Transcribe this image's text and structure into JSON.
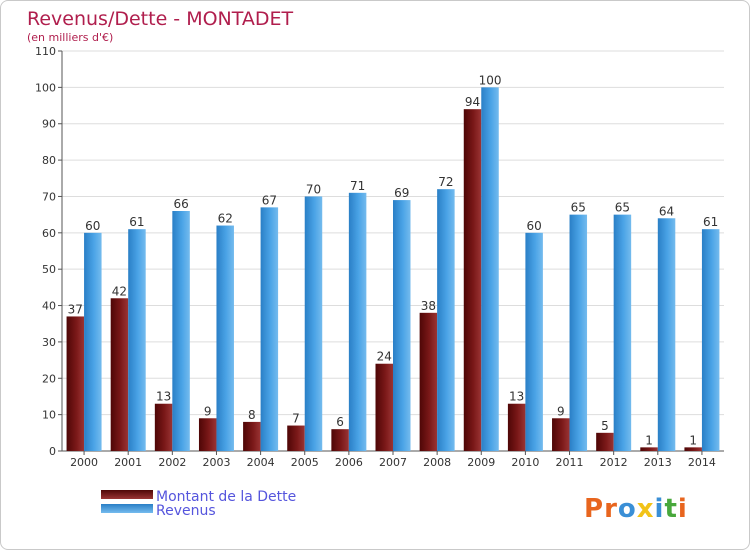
{
  "chart_data": {
    "type": "bar",
    "title": "Revenus/Dette - MONTADET",
    "subtitle": "(en milliers d'€)",
    "categories": [
      "2000",
      "2001",
      "2002",
      "2003",
      "2004",
      "2005",
      "2006",
      "2007",
      "2008",
      "2009",
      "2010",
      "2011",
      "2012",
      "2013",
      "2014"
    ],
    "series": [
      {
        "name": "Montant de la Dette",
        "color": "#7a1515",
        "values": [
          37,
          42,
          13,
          9,
          8,
          7,
          6,
          24,
          38,
          94,
          13,
          9,
          5,
          1,
          1
        ]
      },
      {
        "name": "Revenus",
        "color": "#3d95dd",
        "values": [
          60,
          61,
          66,
          62,
          67,
          70,
          71,
          69,
          72,
          100,
          60,
          65,
          65,
          64,
          61
        ]
      }
    ],
    "ylim": [
      0,
      110
    ],
    "yticks": [
      0,
      10,
      20,
      30,
      40,
      50,
      60,
      70,
      80,
      90,
      100,
      110
    ],
    "grid": true,
    "legend_position": "bottom-left"
  },
  "logo": {
    "text": "Proxiti"
  }
}
